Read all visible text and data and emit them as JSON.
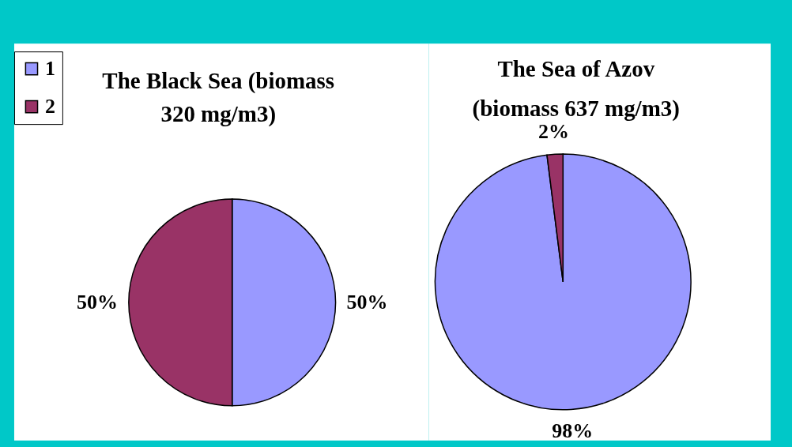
{
  "chart_data": [
    {
      "type": "pie",
      "title": "The Black Sea (biomass 320 mg/m3)",
      "categories": [
        "1",
        "2"
      ],
      "values": [
        50,
        50
      ],
      "colors": [
        "#9999ff",
        "#993366"
      ],
      "value_labels": [
        "50%",
        "50%"
      ],
      "legend": "top left"
    },
    {
      "type": "pie",
      "title": "The Sea of Azov (biomass 637 mg/m3)",
      "categories": [
        null,
        null
      ],
      "values": [
        98,
        2
      ],
      "colors": [
        "#9999ff",
        "#993366"
      ],
      "value_labels": [
        "98%",
        "2%"
      ],
      "legend": false
    }
  ]
}
